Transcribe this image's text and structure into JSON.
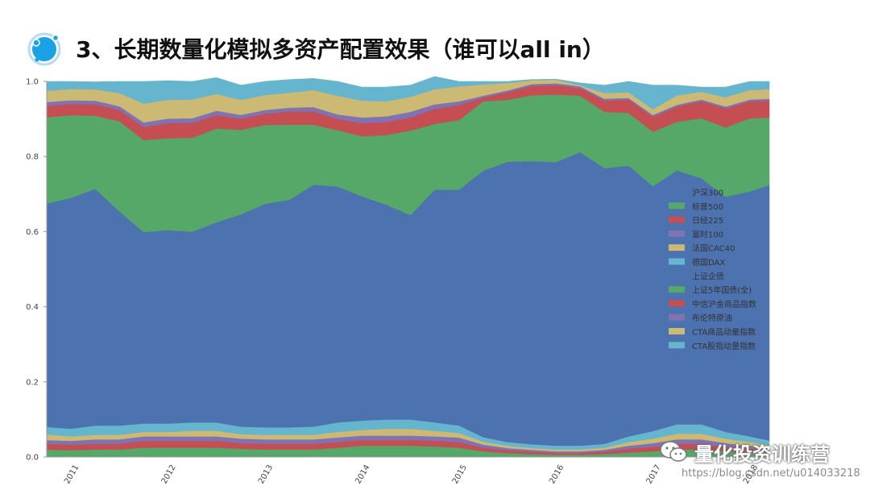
{
  "header": {
    "title": "3、长期数量化模拟多资产配置效果（谁可以all in）"
  },
  "watermark": {
    "text": "量化投资训练营",
    "url": "https://blog.csdn.net/u014033218"
  },
  "chart_data": {
    "type": "area",
    "stacked": true,
    "title": "",
    "xlabel": "",
    "ylabel": "",
    "xlim": [
      2011,
      2018.45
    ],
    "ylim": [
      0,
      1.0
    ],
    "x_ticks": [
      "2011",
      "2012",
      "2013",
      "2014",
      "2015",
      "2016",
      "2017",
      "2018"
    ],
    "y_ticks": [
      "0.0",
      "0.2",
      "0.4",
      "0.6",
      "0.8",
      "1.0"
    ],
    "legend_position": "right",
    "grid": false,
    "x": [
      2011.0,
      2011.25,
      2011.5,
      2011.75,
      2012.0,
      2012.25,
      2012.5,
      2012.75,
      2013.0,
      2013.25,
      2013.5,
      2013.75,
      2014.0,
      2014.25,
      2014.5,
      2014.75,
      2015.0,
      2015.25,
      2015.5,
      2015.75,
      2016.0,
      2016.25,
      2016.5,
      2016.75,
      2017.0,
      2017.25,
      2017.5,
      2017.75,
      2018.0,
      2018.25,
      2018.45
    ],
    "series": [
      {
        "name": "沪深300",
        "color": "#4c72b0",
        "values": [
          0,
          0,
          0,
          0,
          0,
          0,
          0,
          0,
          0,
          0,
          0,
          0,
          0,
          0,
          0,
          0,
          0,
          0,
          0,
          0,
          0,
          0,
          0,
          0,
          0,
          0,
          0,
          0,
          0,
          0,
          0
        ]
      },
      {
        "name": "标普500",
        "color": "#55a868",
        "values": [
          0.02,
          0.018,
          0.02,
          0.02,
          0.025,
          0.025,
          0.025,
          0.025,
          0.022,
          0.02,
          0.02,
          0.02,
          0.025,
          0.03,
          0.03,
          0.03,
          0.028,
          0.025,
          0.015,
          0.01,
          0.008,
          0.006,
          0.006,
          0.008,
          0.012,
          0.015,
          0.02,
          0.02,
          0.015,
          0.012,
          0.01
        ]
      },
      {
        "name": "日经225",
        "color": "#c44e52",
        "values": [
          0.015,
          0.015,
          0.015,
          0.015,
          0.018,
          0.018,
          0.018,
          0.018,
          0.015,
          0.015,
          0.015,
          0.015,
          0.015,
          0.015,
          0.015,
          0.015,
          0.015,
          0.015,
          0.01,
          0.008,
          0.006,
          0.005,
          0.005,
          0.006,
          0.01,
          0.012,
          0.015,
          0.015,
          0.012,
          0.01,
          0.008
        ]
      },
      {
        "name": "富时100",
        "color": "#8172b2",
        "values": [
          0.01,
          0.01,
          0.012,
          0.012,
          0.012,
          0.012,
          0.012,
          0.012,
          0.012,
          0.012,
          0.012,
          0.012,
          0.012,
          0.012,
          0.012,
          0.012,
          0.012,
          0.012,
          0.008,
          0.006,
          0.005,
          0.004,
          0.004,
          0.005,
          0.008,
          0.01,
          0.012,
          0.012,
          0.01,
          0.008,
          0.006
        ]
      },
      {
        "name": "法国CAC40",
        "color": "#ccb974",
        "values": [
          0.015,
          0.012,
          0.012,
          0.012,
          0.012,
          0.012,
          0.015,
          0.015,
          0.012,
          0.012,
          0.012,
          0.012,
          0.015,
          0.015,
          0.018,
          0.018,
          0.015,
          0.012,
          0.008,
          0.006,
          0.005,
          0.005,
          0.005,
          0.006,
          0.01,
          0.012,
          0.015,
          0.015,
          0.012,
          0.01,
          0.008
        ]
      },
      {
        "name": "德国DAX",
        "color": "#64b5cd",
        "values": [
          0.02,
          0.02,
          0.025,
          0.025,
          0.022,
          0.022,
          0.022,
          0.022,
          0.02,
          0.02,
          0.02,
          0.022,
          0.025,
          0.025,
          0.025,
          0.025,
          0.022,
          0.02,
          0.012,
          0.01,
          0.01,
          0.01,
          0.01,
          0.01,
          0.015,
          0.02,
          0.025,
          0.025,
          0.018,
          0.015,
          0.012
        ]
      },
      {
        "name": "上证企债",
        "color": "#4c72b0",
        "values": [
          0.595,
          0.615,
          0.63,
          0.57,
          0.51,
          0.515,
          0.508,
          0.533,
          0.565,
          0.595,
          0.606,
          0.644,
          0.628,
          0.597,
          0.572,
          0.544,
          0.62,
          0.628,
          0.709,
          0.746,
          0.754,
          0.755,
          0.782,
          0.734,
          0.721,
          0.652,
          0.676,
          0.655,
          0.626,
          0.652,
          0.68
        ]
      },
      {
        "name": "上证5年国债(全)",
        "color": "#55a868",
        "values": [
          0.23,
          0.22,
          0.195,
          0.24,
          0.245,
          0.245,
          0.25,
          0.25,
          0.225,
          0.21,
          0.2,
          0.16,
          0.15,
          0.16,
          0.185,
          0.225,
          0.175,
          0.185,
          0.185,
          0.165,
          0.175,
          0.18,
          0.15,
          0.15,
          0.14,
          0.145,
          0.13,
          0.16,
          0.185,
          0.195,
          0.18
        ]
      },
      {
        "name": "中信沪金商品指数",
        "color": "#c44e52",
        "values": [
          0.03,
          0.03,
          0.03,
          0.03,
          0.035,
          0.04,
          0.04,
          0.035,
          0.03,
          0.03,
          0.035,
          0.035,
          0.03,
          0.035,
          0.035,
          0.035,
          0.04,
          0.04,
          0.01,
          0.02,
          0.025,
          0.025,
          0.02,
          0.03,
          0.035,
          0.04,
          0.04,
          0.045,
          0.05,
          0.045,
          0.045
        ]
      },
      {
        "name": "布伦特原油",
        "color": "#8172b2",
        "values": [
          0.01,
          0.01,
          0.01,
          0.01,
          0.012,
          0.012,
          0.012,
          0.012,
          0.01,
          0.01,
          0.01,
          0.012,
          0.012,
          0.015,
          0.015,
          0.015,
          0.012,
          0.01,
          0.005,
          0.005,
          0.005,
          0.005,
          0.005,
          0.005,
          0.005,
          0.005,
          0.005,
          0.005,
          0.005,
          0.005,
          0.005
        ]
      },
      {
        "name": "CTA商品动量指数",
        "color": "#ccb974",
        "values": [
          0.03,
          0.03,
          0.03,
          0.035,
          0.05,
          0.05,
          0.05,
          0.045,
          0.04,
          0.04,
          0.04,
          0.045,
          0.05,
          0.045,
          0.04,
          0.04,
          0.04,
          0.04,
          0.03,
          0.02,
          0.01,
          0.01,
          0.003,
          0.015,
          0.015,
          0.015,
          0.025,
          0.02,
          0.025,
          0.025,
          0.025
        ]
      },
      {
        "name": "CTA股指动量指数",
        "color": "#64b5cd",
        "values": [
          0.025,
          0.02,
          0.02,
          0.031,
          0.059,
          0.051,
          0.048,
          0.043,
          0.039,
          0.036,
          0.035,
          0.031,
          0.038,
          0.036,
          0.038,
          0.031,
          0.034,
          0.013,
          0.008,
          0.004,
          0.002,
          0.001,
          0.006,
          0.021,
          0.029,
          0.064,
          0.027,
          0.013,
          0.027,
          0.023,
          0.021
        ]
      }
    ]
  }
}
